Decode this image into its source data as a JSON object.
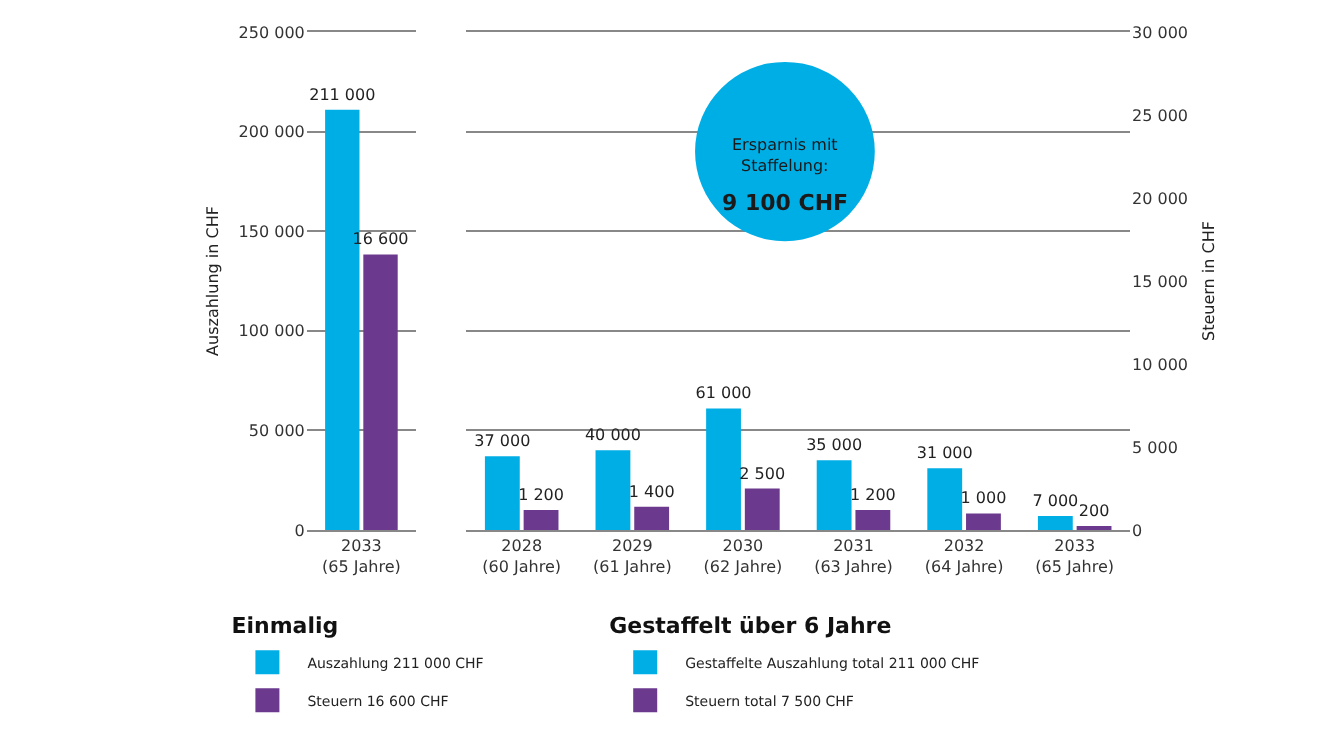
{
  "chart_data": [
    {
      "type": "bar",
      "legend_title": "Einmalig",
      "categories": [
        "2033\n(65 Jahre)"
      ],
      "ylabel": "Auszahlung in CHF",
      "ylim": [
        0,
        250000
      ],
      "yticks": [
        0,
        {
          "value": 50000,
          "label": "50 000"
        },
        {
          "value": 100000,
          "label": "100 000"
        },
        {
          "value": 150000,
          "label": "150 000"
        },
        {
          "value": 200000,
          "label": "200 000"
        },
        {
          "value": 250000,
          "label": "250 000"
        }
      ],
      "y2lim": [
        0,
        30000
      ],
      "tick_labels": [
        "x",
        "y"
      ],
      "grid": "y",
      "legend": "bottom",
      "series": [
        {
          "name": "Auszahlung 211 000 CHF",
          "color": "#00aee6",
          "values": [
            211000
          ],
          "value_labels": [
            "211 000"
          ]
        },
        {
          "name": "Steuern 16 600 CHF",
          "color": "#6b3a8f",
          "values": [
            16600
          ],
          "axis": "y2",
          "value_labels": [
            "16 600"
          ]
        }
      ]
    },
    {
      "type": "bar",
      "legend_title": "Gestaffelt über 6 Jahre",
      "categories": [
        "2028\n(60 Jahre)",
        "2029\n(61 Jahre)",
        "2030\n(62 Jahre)",
        "2031\n(63 Jahre)",
        "2032\n(64 Jahre)",
        "2033\n(65 Jahre)"
      ],
      "y2label": "Steuern in CHF",
      "ylim": [
        0,
        250000
      ],
      "y2lim": [
        0,
        30000
      ],
      "yticks": [
        {
          "value": 0,
          "label": null
        },
        {
          "value": 50000,
          "label": null
        },
        {
          "value": 100000,
          "label": null
        },
        {
          "value": 150000,
          "label": null
        },
        {
          "value": 200000,
          "label": null
        },
        {
          "value": 250000,
          "label": null
        }
      ],
      "y2ticks": [
        0,
        {
          "value": 5000,
          "label": "5 000"
        },
        {
          "value": 10000,
          "label": "10 000"
        },
        {
          "value": 15000,
          "label": "15 000"
        },
        {
          "value": 20000,
          "label": "20 000"
        },
        {
          "value": 25000,
          "label": "25 000"
        },
        {
          "value": 30000,
          "label": "30 000"
        }
      ],
      "tick_labels": [
        "x",
        "y2"
      ],
      "grid": "y",
      "legend": "bottom",
      "annotations": [
        "Ersparnis mit\nStaffelung:",
        "9 100 CHF"
      ],
      "series": [
        {
          "name": "Gestaffelte Auszahlung total 211 000 CHF",
          "color": "#00aee6",
          "values": [
            37000,
            40000,
            61000,
            35000,
            31000,
            7000
          ],
          "value_labels": [
            "37 000",
            "40 000",
            "61 000",
            "35 000",
            "31 000",
            "7 000"
          ]
        },
        {
          "name": "Steuern total 7 500 CHF",
          "color": "#6b3a8f",
          "values": [
            1200,
            1400,
            2500,
            1200,
            1000,
            200
          ],
          "axis": "y2",
          "value_labels": [
            "1 200",
            "1 400",
            "2 500",
            "1 200",
            "1 000",
            "200"
          ]
        }
      ]
    }
  ]
}
